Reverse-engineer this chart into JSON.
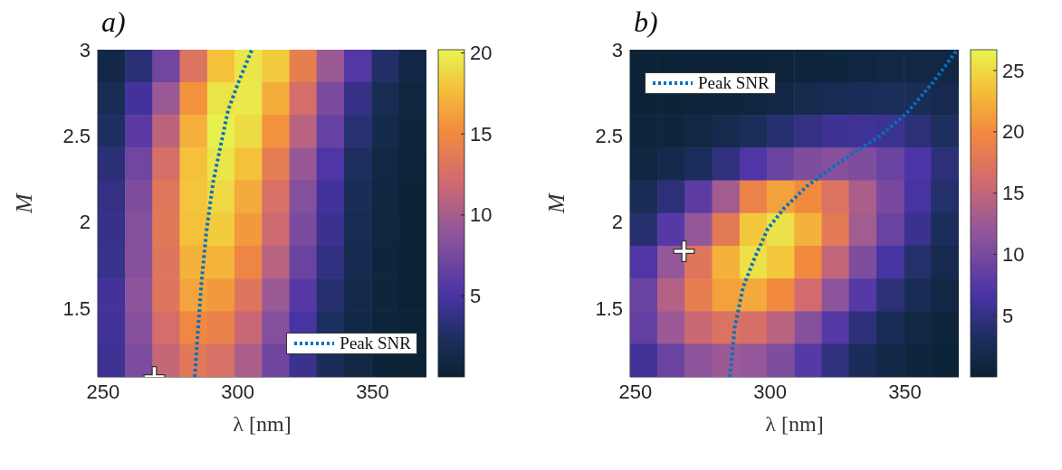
{
  "chart_data": [
    {
      "type": "heatmap",
      "title": "a)",
      "xlabel": "λ [nm]",
      "ylabel": "M",
      "xlim": [
        248,
        370
      ],
      "ylim": [
        1.1,
        3
      ],
      "xticks": [
        250,
        300,
        350
      ],
      "yticks": [
        1.5,
        2,
        2.5,
        3
      ],
      "clim": [
        0,
        20.2
      ],
      "cticks": [
        5,
        10,
        15,
        20
      ],
      "legend": "bottom right",
      "x": [
        253.1,
        263.3,
        273.4,
        283.6,
        293.8,
        303.9,
        314.1,
        324.3,
        334.4,
        344.6,
        354.8,
        364.9
      ],
      "cells": [
        [
          1.2,
          3.3,
          7.2,
          13,
          17.8,
          19.5,
          18.3,
          14,
          9.5,
          5.5,
          2.8,
          1.2
        ],
        [
          1.9,
          4.7,
          9.4,
          15.6,
          19.4,
          19.6,
          16.8,
          12.4,
          7.7,
          3.9,
          1.8,
          0.7
        ],
        [
          2.6,
          6,
          11.1,
          17,
          20,
          19,
          15.6,
          10.9,
          6.6,
          3.1,
          1.4,
          0.5
        ],
        [
          3.3,
          7.2,
          12.5,
          17.8,
          19.5,
          17.8,
          13.9,
          9.3,
          5.3,
          2.4,
          1,
          0.4
        ],
        [
          3.8,
          8,
          13.3,
          18,
          18.9,
          16.7,
          12.6,
          8.2,
          4.6,
          2,
          0.8,
          0.3
        ],
        [
          4,
          8.2,
          13.5,
          17.8,
          18.3,
          15.9,
          11.9,
          7.6,
          4.2,
          1.8,
          0.7,
          0.3
        ],
        [
          4.1,
          8.3,
          13.2,
          17.1,
          17.2,
          14.7,
          10.8,
          6.8,
          3.7,
          1.6,
          0.6,
          0.2
        ],
        [
          4.6,
          8.7,
          13.2,
          16.4,
          15.9,
          13.2,
          9.4,
          5.7,
          3,
          1.3,
          0.5,
          0.2
        ],
        [
          4.5,
          8.3,
          12.4,
          15,
          14.3,
          11.7,
          8.2,
          4.9,
          2.5,
          1.1,
          0.4,
          0.1
        ],
        [
          4.3,
          7.9,
          11.5,
          13.5,
          12.7,
          10.2,
          7.1,
          4.2,
          2.1,
          0.9,
          0.3,
          0.1
        ]
      ],
      "series": [
        {
          "type": "line",
          "name": "Peak SNR",
          "color": "#0072bd",
          "line_style": "dotted",
          "marker": "none",
          "x": [
            284,
            285.2,
            286.5,
            288.3,
            290.8,
            293.3,
            296.4,
            300.2,
            305.2
          ],
          "values": [
            1.1,
            1.37,
            1.65,
            1.94,
            2.23,
            2.42,
            2.65,
            2.81,
            3
          ]
        },
        {
          "type": "scatter",
          "color": "#ffffff",
          "marker": "cross",
          "x": [
            269
          ],
          "values": [
            1.1
          ]
        }
      ]
    },
    {
      "type": "heatmap",
      "title": "b)",
      "xlabel": "λ [nm]",
      "ylabel": "M",
      "xlim": [
        248,
        370
      ],
      "ylim": [
        1.1,
        3
      ],
      "xticks": [
        250,
        300,
        350
      ],
      "yticks": [
        1.5,
        2,
        2.5,
        3
      ],
      "clim": [
        0,
        26.7
      ],
      "cticks": [
        5,
        10,
        15,
        20,
        25
      ],
      "legend": "top left",
      "x": [
        253.1,
        263.3,
        273.4,
        283.6,
        293.8,
        303.9,
        314.1,
        324.3,
        334.4,
        344.6,
        354.8,
        364.9
      ],
      "cells": [
        [
          0.2,
          0.2,
          0.3,
          0.3,
          0.4,
          0.5,
          0.6,
          0.8,
          1,
          1.2,
          1.3,
          1.2
        ],
        [
          0.3,
          0.4,
          0.5,
          0.7,
          1,
          1.4,
          1.9,
          2.4,
          2.8,
          2.9,
          2.6,
          2
        ],
        [
          0.5,
          0.8,
          1.2,
          1.9,
          2.9,
          4,
          5,
          5.8,
          6,
          5.6,
          4.5,
          3.2
        ],
        [
          1,
          1.8,
          3,
          4.8,
          7,
          9,
          10.5,
          11,
          10.5,
          9,
          6.8,
          4.5
        ],
        [
          2.5,
          4.5,
          8,
          13,
          19,
          21.5,
          20,
          17,
          13.5,
          10,
          6.5,
          3.8
        ],
        [
          4,
          7.5,
          12,
          18,
          24,
          25.5,
          22.5,
          18,
          13,
          9,
          5.5,
          3
        ],
        [
          7,
          12,
          17.5,
          22.5,
          25.5,
          24,
          20,
          15,
          10.5,
          6.5,
          3.8,
          2
        ],
        [
          9,
          14,
          18.5,
          21.5,
          22,
          20,
          16,
          11.5,
          7.5,
          4.5,
          2.5,
          1.2
        ],
        [
          8.5,
          12.5,
          15.5,
          17,
          16.5,
          14.5,
          11,
          7.5,
          4.5,
          2.5,
          1.3,
          0.7
        ],
        [
          6,
          9,
          11.5,
          12.5,
          12,
          10.5,
          7.5,
          4.8,
          2.8,
          1.5,
          0.8,
          0.4
        ]
      ],
      "series": [
        {
          "type": "line",
          "name": "Peak SNR",
          "color": "#0072bd",
          "line_style": "dotted",
          "marker": "none",
          "x": [
            285,
            286.8,
            289.9,
            294.2,
            299.1,
            305.2,
            313.8,
            326.1,
            340.8,
            350.6,
            360.4,
            369
          ],
          "values": [
            1.1,
            1.385,
            1.62,
            1.79,
            1.96,
            2.08,
            2.21,
            2.35,
            2.5,
            2.63,
            2.81,
            2.99
          ]
        },
        {
          "type": "scatter",
          "color": "#ffffff",
          "marker": "cross",
          "x": [
            268
          ],
          "values": [
            1.83
          ]
        }
      ]
    }
  ]
}
